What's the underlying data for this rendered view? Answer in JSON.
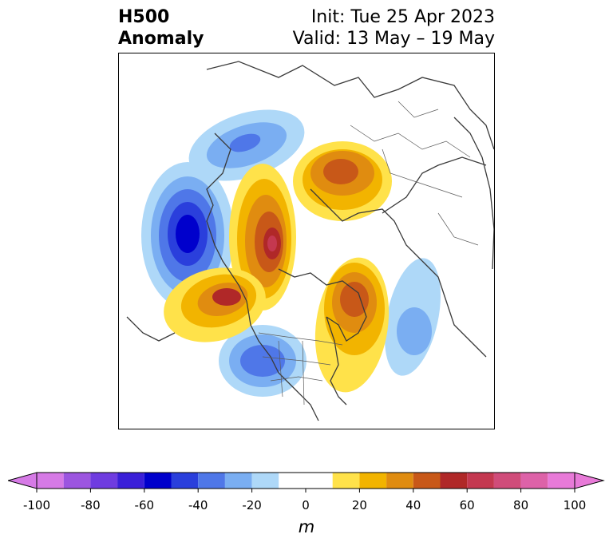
{
  "header": {
    "title_line1": "H500",
    "title_line2": "Anomaly",
    "init_label": "Init: Tue 25 Apr 2023",
    "valid_label": "Valid: 13 May – 19 May"
  },
  "colorbar": {
    "unit": "m",
    "ticks": [
      "-100",
      "-80",
      "-60",
      "-40",
      "-20",
      "0",
      "20",
      "40",
      "60",
      "80",
      "100"
    ],
    "levels": [
      -100,
      -90,
      -80,
      -70,
      -60,
      -50,
      -40,
      -30,
      -20,
      -10,
      10,
      20,
      30,
      40,
      50,
      60,
      70,
      80,
      90,
      100
    ],
    "colors": [
      "#d67ae6",
      "#9c55e0",
      "#6f3ce0",
      "#3a1fd8",
      "#0000cc",
      "#2a3fdc",
      "#4f77e8",
      "#7aaef2",
      "#aed8f8",
      "#ffffff",
      "#ffe24a",
      "#f2b400",
      "#e08c10",
      "#c85818",
      "#b02828",
      "#c43850",
      "#d04c7a",
      "#dd62a8",
      "#e87ad8"
    ],
    "min_color": "#d67ae6",
    "max_color": "#e87ad8"
  }
}
